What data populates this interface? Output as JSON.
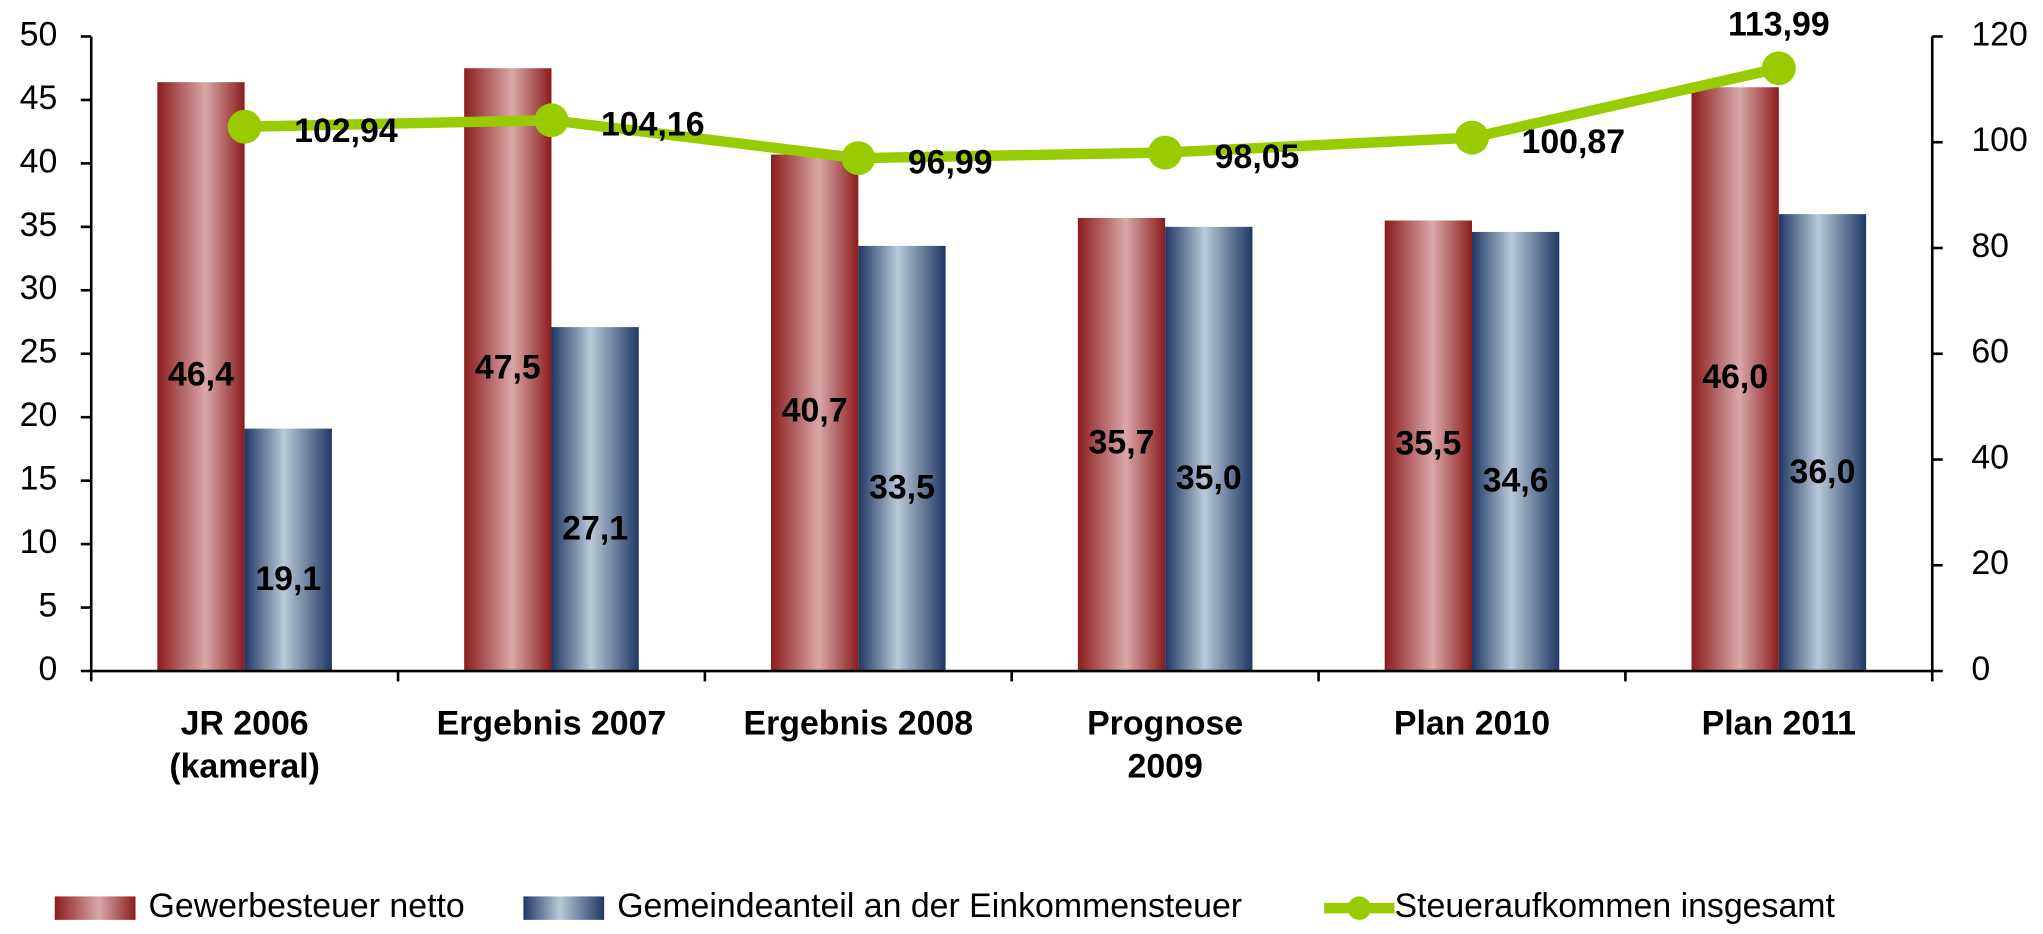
{
  "chart_data": {
    "type": "bar",
    "categories": [
      "JR 2006\n(kameral)",
      "Ergebnis 2007",
      "Ergebnis 2008",
      "Prognose\n2009",
      "Plan 2010",
      "Plan 2011"
    ],
    "series": [
      {
        "name": "Gewerbesteuer netto",
        "color": "#8b1c1c",
        "values": [
          46.4,
          47.5,
          40.7,
          35.7,
          35.5,
          46.0
        ],
        "value_labels": [
          "46,4",
          "47,5",
          "40,7",
          "35,7",
          "35,5",
          "46,0"
        ]
      },
      {
        "name": "Gemeindeanteil an der Einkommensteuer",
        "color": "#1f3864",
        "values": [
          19.1,
          27.1,
          33.5,
          35.0,
          34.6,
          36.0
        ],
        "value_labels": [
          "19,1",
          "27,1",
          "33,5",
          "35,0",
          "34,6",
          "36,0"
        ]
      },
      {
        "name": "Steueraufkommen insgesamt",
        "type": "line",
        "axis": "y2",
        "color": "#99cc00",
        "values": [
          102.94,
          104.16,
          96.99,
          98.05,
          100.87,
          113.99
        ],
        "value_labels": [
          "102,94",
          "104,16",
          "96,99",
          "98,05",
          "100,87",
          "113,99"
        ]
      }
    ],
    "ylim": [
      0,
      50
    ],
    "yticks": [
      0,
      5,
      10,
      15,
      20,
      25,
      30,
      35,
      40,
      45,
      50
    ],
    "y2lim": [
      0,
      120
    ],
    "y2ticks": [
      0,
      20,
      40,
      60,
      80,
      100,
      120
    ],
    "legend": "bottom"
  }
}
